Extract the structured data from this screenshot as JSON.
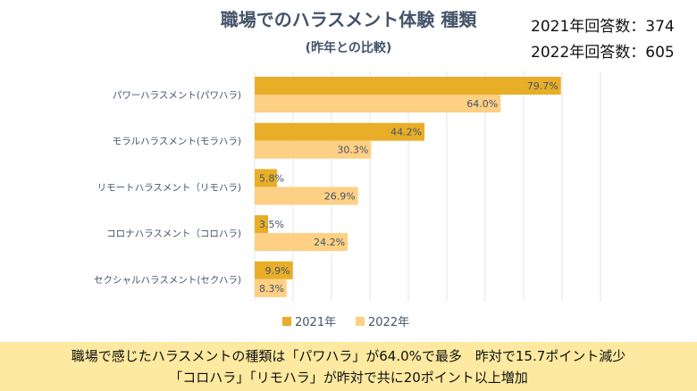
{
  "header": {
    "title": "職場でのハラスメント体験 種類",
    "subtitle": "(昨年との比較)",
    "count_2021": "2021年回答数：374",
    "count_2022": "2022年回答数：605"
  },
  "chart_data": {
    "type": "bar",
    "orientation": "horizontal",
    "categories": [
      "パワーハラスメント(パワハラ)",
      "モラルハラスメント(モラハラ)",
      "リモートハラスメント（リモハラ)",
      "コロナハラスメント（コロハラ)",
      "セクシャルハラスメント(セクハラ)"
    ],
    "series": [
      {
        "name": "2021年",
        "values": [
          79.7,
          44.2,
          5.8,
          3.5,
          9.9
        ],
        "labels": [
          "79.7%",
          "44.2%",
          "5.8%",
          "3.5%",
          "9.9%"
        ],
        "color": "#e8ae28"
      },
      {
        "name": "2022年",
        "values": [
          64.0,
          30.3,
          26.9,
          24.2,
          8.3
        ],
        "labels": [
          "64.0%",
          "30.3%",
          "26.9%",
          "24.2%",
          "8.3%"
        ],
        "color": "#fdd083"
      }
    ],
    "xlim": [
      0,
      90
    ],
    "grid": true,
    "legend": "bottom"
  },
  "footer": {
    "line1": "職場で感じたハラスメントの種類は「パワハラ」が64.0%で最多　昨対で15.7ポイント減少",
    "line2": "「コロハラ」「リモハラ」が昨対で共に20ポイント以上増加"
  }
}
